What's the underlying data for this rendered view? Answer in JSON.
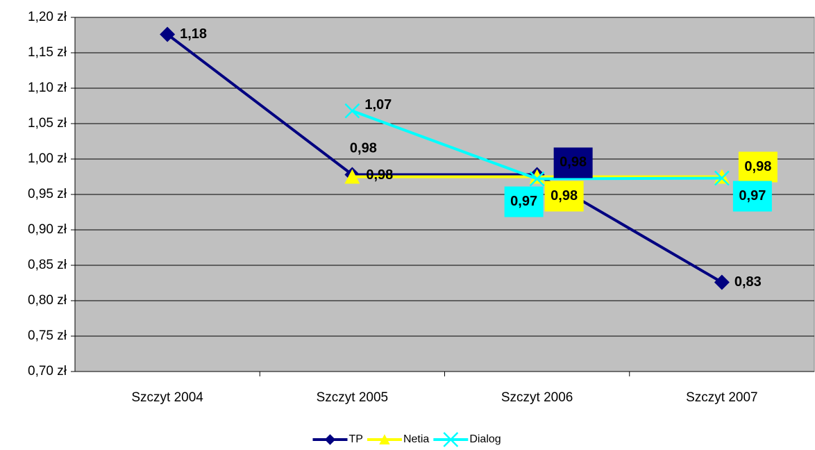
{
  "chart_data": {
    "type": "line",
    "categories": [
      "Szczyt 2004",
      "Szczyt 2005",
      "Szczyt 2006",
      "Szczyt 2007"
    ],
    "series": [
      {
        "name": "TP",
        "color": "#000080",
        "marker": "diamond",
        "values": [
          1.176,
          0.978,
          0.978,
          0.826
        ],
        "value_labels": [
          "1,18",
          "0,98",
          "0,98",
          "0,83"
        ]
      },
      {
        "name": "Netia",
        "color": "#ffff00",
        "marker": "triangle",
        "values": [
          null,
          0.975,
          0.975,
          0.975
        ],
        "value_labels": [
          null,
          "0,98",
          "0,98",
          "0,98"
        ]
      },
      {
        "name": "Dialog",
        "color": "#00ffff",
        "marker": "x",
        "values": [
          null,
          1.068,
          0.972,
          0.973
        ],
        "value_labels": [
          null,
          "1,07",
          "0,97",
          "0,97"
        ]
      }
    ],
    "ylim": [
      0.7,
      1.2
    ],
    "yticks": [
      {
        "value": 0.7,
        "label": "0,70 zł"
      },
      {
        "value": 0.75,
        "label": "0,75 zł"
      },
      {
        "value": 0.8,
        "label": "0,80 zł"
      },
      {
        "value": 0.85,
        "label": "0,85 zł"
      },
      {
        "value": 0.9,
        "label": "0,90 zł"
      },
      {
        "value": 0.95,
        "label": "0,95 zł"
      },
      {
        "value": 1.0,
        "label": "1,00 zł"
      },
      {
        "value": 1.05,
        "label": "1,05 zł"
      },
      {
        "value": 1.1,
        "label": "1,10 zł"
      },
      {
        "value": 1.15,
        "label": "1,15 zł"
      },
      {
        "value": 1.2,
        "label": "1,20 zł"
      }
    ],
    "grid": true,
    "legend": "bottom",
    "background": "#c0c0c0"
  }
}
